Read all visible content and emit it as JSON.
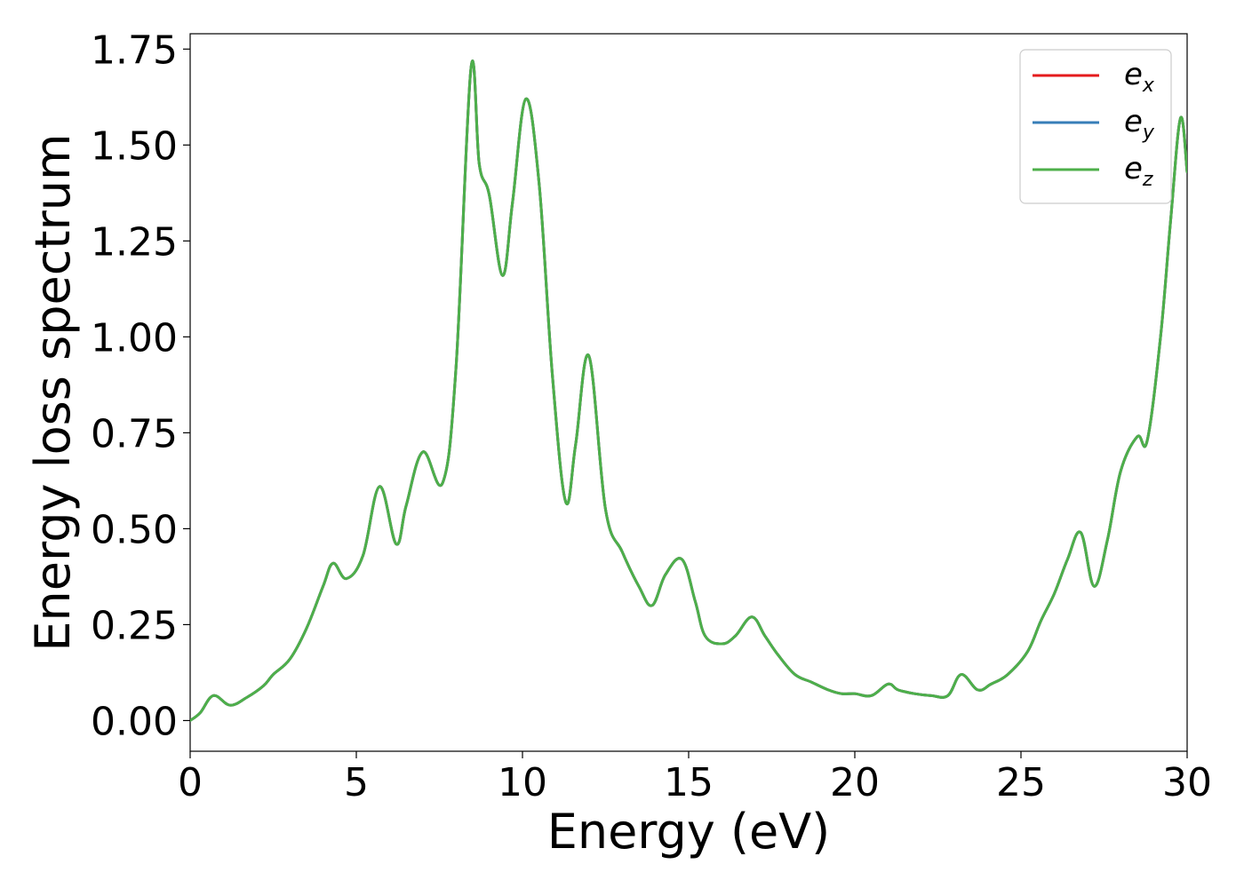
{
  "chart_data": {
    "type": "line",
    "title": "",
    "xlabel": "Energy (eV)",
    "ylabel": "Energy loss spectrum",
    "xlim": [
      0,
      30
    ],
    "ylim": [
      -0.08,
      1.79
    ],
    "xticks": [
      0,
      5,
      10,
      15,
      20,
      25,
      30
    ],
    "xtick_labels": [
      "0",
      "5",
      "10",
      "15",
      "20",
      "25",
      "30"
    ],
    "yticks": [
      0.0,
      0.25,
      0.5,
      0.75,
      1.0,
      1.25,
      1.5,
      1.75
    ],
    "ytick_labels": [
      "0.00",
      "0.25",
      "0.50",
      "0.75",
      "1.00",
      "1.25",
      "1.50",
      "1.75"
    ],
    "grid": false,
    "legend_position": "top-right",
    "colors": {
      "e_x": "#e41a1c",
      "e_y": "#377eb8",
      "e_z": "#4daf4a"
    },
    "x": [
      0,
      0.3,
      0.7,
      1.2,
      1.7,
      2.2,
      2.5,
      3.0,
      3.5,
      4.0,
      4.3,
      4.7,
      5.2,
      5.7,
      6.2,
      6.5,
      7.0,
      7.6,
      8.0,
      8.45,
      8.7,
      9.0,
      9.4,
      9.7,
      10.1,
      10.5,
      10.9,
      11.3,
      11.6,
      12.0,
      12.5,
      13.0,
      13.5,
      13.9,
      14.3,
      14.8,
      15.2,
      15.5,
      16.0,
      16.4,
      16.9,
      17.3,
      17.7,
      18.2,
      18.7,
      19.2,
      19.6,
      20.0,
      20.5,
      21.0,
      21.3,
      21.8,
      22.3,
      22.8,
      23.2,
      23.7,
      24.1,
      24.6,
      25.2,
      25.6,
      26.0,
      26.4,
      26.8,
      27.2,
      27.6,
      28.0,
      28.5,
      28.8,
      29.2,
      29.5,
      29.8,
      30.0
    ],
    "series": [
      {
        "name": "e_x",
        "values": [
          0.0,
          0.02,
          0.065,
          0.04,
          0.06,
          0.09,
          0.12,
          0.16,
          0.24,
          0.35,
          0.41,
          0.37,
          0.43,
          0.61,
          0.46,
          0.56,
          0.7,
          0.62,
          0.92,
          1.7,
          1.45,
          1.37,
          1.16,
          1.35,
          1.62,
          1.4,
          0.9,
          0.57,
          0.72,
          0.95,
          0.55,
          0.44,
          0.35,
          0.3,
          0.38,
          0.42,
          0.31,
          0.22,
          0.2,
          0.22,
          0.27,
          0.22,
          0.17,
          0.12,
          0.1,
          0.08,
          0.07,
          0.07,
          0.065,
          0.095,
          0.08,
          0.07,
          0.065,
          0.065,
          0.12,
          0.08,
          0.095,
          0.12,
          0.18,
          0.26,
          0.33,
          0.42,
          0.49,
          0.35,
          0.47,
          0.65,
          0.74,
          0.73,
          1.0,
          1.3,
          1.57,
          1.43
        ]
      },
      {
        "name": "e_y",
        "values": [
          0.0,
          0.02,
          0.065,
          0.04,
          0.06,
          0.09,
          0.12,
          0.16,
          0.24,
          0.35,
          0.41,
          0.37,
          0.43,
          0.61,
          0.46,
          0.56,
          0.7,
          0.62,
          0.92,
          1.7,
          1.45,
          1.37,
          1.16,
          1.35,
          1.62,
          1.4,
          0.9,
          0.57,
          0.72,
          0.95,
          0.55,
          0.44,
          0.35,
          0.3,
          0.38,
          0.42,
          0.31,
          0.22,
          0.2,
          0.22,
          0.27,
          0.22,
          0.17,
          0.12,
          0.1,
          0.08,
          0.07,
          0.07,
          0.065,
          0.095,
          0.08,
          0.07,
          0.065,
          0.065,
          0.12,
          0.08,
          0.095,
          0.12,
          0.18,
          0.26,
          0.33,
          0.42,
          0.49,
          0.35,
          0.47,
          0.65,
          0.74,
          0.73,
          1.0,
          1.3,
          1.57,
          1.43
        ]
      },
      {
        "name": "e_z",
        "values": [
          0.0,
          0.02,
          0.065,
          0.04,
          0.06,
          0.09,
          0.12,
          0.16,
          0.24,
          0.35,
          0.41,
          0.37,
          0.43,
          0.61,
          0.46,
          0.56,
          0.7,
          0.62,
          0.92,
          1.7,
          1.45,
          1.37,
          1.16,
          1.35,
          1.62,
          1.4,
          0.9,
          0.57,
          0.72,
          0.95,
          0.55,
          0.44,
          0.35,
          0.3,
          0.38,
          0.42,
          0.31,
          0.22,
          0.2,
          0.22,
          0.27,
          0.22,
          0.17,
          0.12,
          0.1,
          0.08,
          0.07,
          0.07,
          0.065,
          0.095,
          0.08,
          0.07,
          0.065,
          0.065,
          0.12,
          0.08,
          0.095,
          0.12,
          0.18,
          0.26,
          0.33,
          0.42,
          0.49,
          0.35,
          0.47,
          0.65,
          0.74,
          0.73,
          1.0,
          1.3,
          1.57,
          1.43
        ]
      }
    ],
    "legend": [
      {
        "base": "e",
        "sub": "x",
        "series": "e_x"
      },
      {
        "base": "e",
        "sub": "y",
        "series": "e_y"
      },
      {
        "base": "e",
        "sub": "z",
        "series": "e_z"
      }
    ]
  }
}
